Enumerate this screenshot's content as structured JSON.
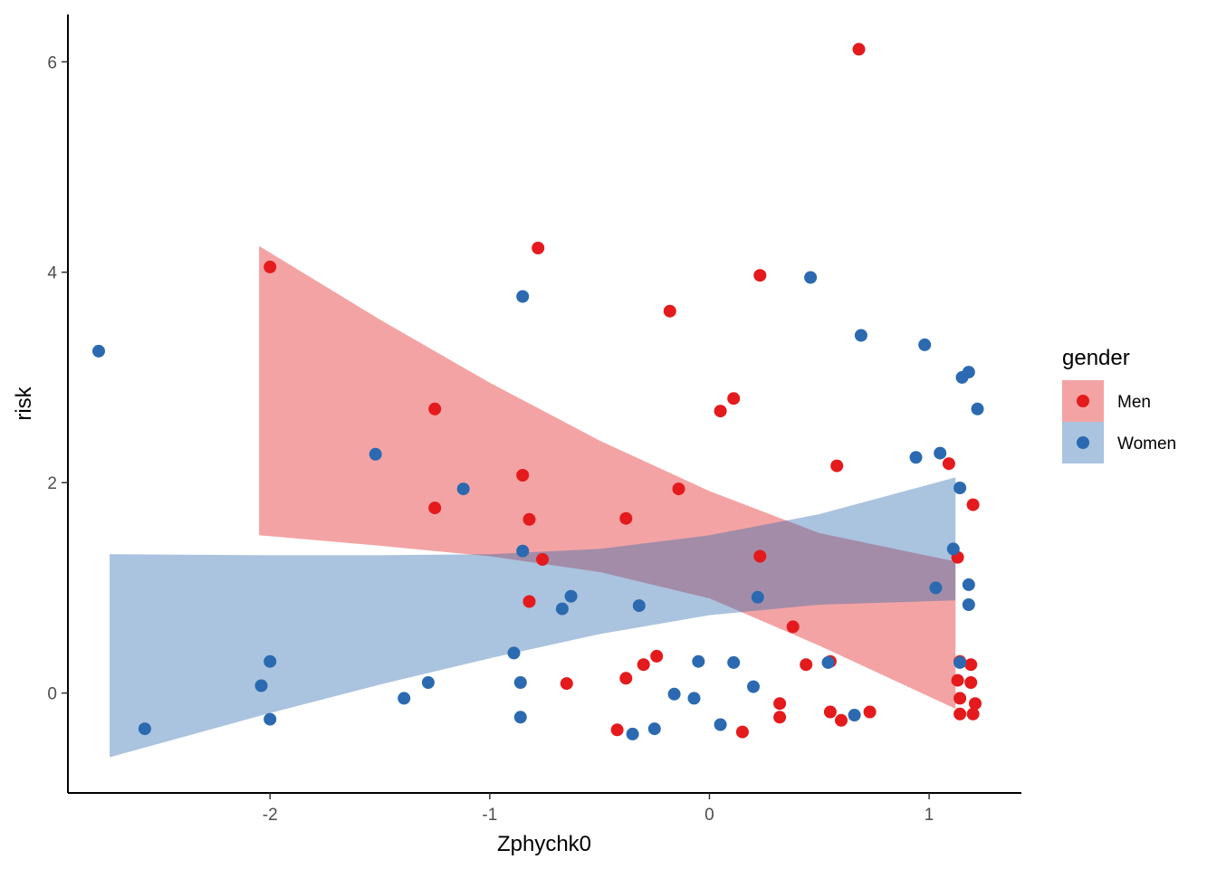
{
  "chart_data": {
    "type": "scatter",
    "xlabel": "Zphychk0",
    "ylabel": "risk",
    "xlim": [
      -2.92,
      1.42
    ],
    "ylim": [
      -0.95,
      6.45
    ],
    "x_ticks": [
      -2,
      -1,
      0,
      1
    ],
    "x_tick_labels": [
      "-2",
      "-1",
      "0",
      "1"
    ],
    "y_ticks": [
      0,
      2,
      4,
      6
    ],
    "y_tick_labels": [
      "0",
      "2",
      "4",
      "6"
    ],
    "grid": false,
    "legend": {
      "title": "gender",
      "placement": "right"
    },
    "series": [
      {
        "name": "Men",
        "color": "#E41A1C",
        "band_color": "#F09AA0",
        "band": {
          "x": [
            -2.05,
            -1.5,
            -1.0,
            -0.5,
            0.0,
            0.5,
            1.12
          ],
          "upper": [
            4.25,
            3.55,
            2.95,
            2.4,
            1.92,
            1.52,
            1.25
          ],
          "lower": [
            1.5,
            1.4,
            1.3,
            1.15,
            0.9,
            0.45,
            -0.15
          ]
        },
        "points": [
          [
            -2.0,
            4.05
          ],
          [
            -0.78,
            4.23
          ],
          [
            0.23,
            3.97
          ],
          [
            -0.18,
            3.63
          ],
          [
            -1.25,
            2.7
          ],
          [
            0.11,
            2.8
          ],
          [
            0.05,
            2.68
          ],
          [
            -0.85,
            2.07
          ],
          [
            -0.14,
            1.94
          ],
          [
            0.58,
            2.16
          ],
          [
            1.09,
            2.18
          ],
          [
            1.2,
            1.79
          ],
          [
            -1.25,
            1.76
          ],
          [
            -0.38,
            1.66
          ],
          [
            -0.82,
            1.65
          ],
          [
            -0.76,
            1.27
          ],
          [
            0.23,
            1.3
          ],
          [
            1.13,
            1.29
          ],
          [
            -0.82,
            0.87
          ],
          [
            0.38,
            0.63
          ],
          [
            -0.24,
            0.35
          ],
          [
            -0.3,
            0.27
          ],
          [
            0.44,
            0.27
          ],
          [
            0.55,
            0.3
          ],
          [
            1.14,
            0.3
          ],
          [
            1.19,
            0.27
          ],
          [
            -0.65,
            0.09
          ],
          [
            -0.38,
            0.14
          ],
          [
            1.13,
            0.12
          ],
          [
            1.19,
            0.1
          ],
          [
            0.32,
            -0.1
          ],
          [
            1.14,
            -0.05
          ],
          [
            1.21,
            -0.1
          ],
          [
            0.32,
            -0.23
          ],
          [
            0.55,
            -0.18
          ],
          [
            0.6,
            -0.26
          ],
          [
            0.73,
            -0.18
          ],
          [
            1.14,
            -0.2
          ],
          [
            1.2,
            -0.2
          ],
          [
            -0.42,
            -0.35
          ],
          [
            0.15,
            -0.37
          ],
          [
            0.68,
            6.12
          ]
        ]
      },
      {
        "name": "Women",
        "color": "#2B6AB0",
        "band_color": "#ADC4DE",
        "band": {
          "x": [
            -2.73,
            -2.0,
            -1.5,
            -1.0,
            -0.5,
            0.0,
            0.5,
            1.12
          ],
          "upper": [
            1.32,
            1.31,
            1.31,
            1.32,
            1.37,
            1.5,
            1.7,
            2.05
          ],
          "lower": [
            -0.61,
            -0.19,
            0.08,
            0.33,
            0.56,
            0.74,
            0.84,
            0.88
          ]
        },
        "points": [
          [
            -2.78,
            3.25
          ],
          [
            -0.85,
            3.77
          ],
          [
            0.46,
            3.95
          ],
          [
            0.69,
            3.4
          ],
          [
            0.98,
            3.31
          ],
          [
            1.18,
            3.05
          ],
          [
            1.15,
            3.0
          ],
          [
            1.22,
            2.7
          ],
          [
            0.94,
            2.24
          ],
          [
            1.05,
            2.28
          ],
          [
            1.14,
            1.95
          ],
          [
            -1.52,
            2.27
          ],
          [
            -1.12,
            1.94
          ],
          [
            1.11,
            1.37
          ],
          [
            1.18,
            1.03
          ],
          [
            1.03,
            1.0
          ],
          [
            1.18,
            0.84
          ],
          [
            -0.85,
            1.35
          ],
          [
            0.22,
            0.91
          ],
          [
            -0.63,
            0.92
          ],
          [
            -0.67,
            0.8
          ],
          [
            -0.32,
            0.83
          ],
          [
            -2.0,
            0.3
          ],
          [
            -2.04,
            0.07
          ],
          [
            -0.89,
            0.38
          ],
          [
            -1.28,
            0.1
          ],
          [
            -0.86,
            0.1
          ],
          [
            -0.05,
            0.3
          ],
          [
            0.11,
            0.29
          ],
          [
            0.54,
            0.29
          ],
          [
            1.14,
            0.29
          ],
          [
            -1.39,
            -0.05
          ],
          [
            -0.16,
            -0.01
          ],
          [
            -0.07,
            -0.05
          ],
          [
            0.2,
            0.06
          ],
          [
            -2.0,
            -0.25
          ],
          [
            -0.86,
            -0.23
          ],
          [
            -2.57,
            -0.34
          ],
          [
            -0.35,
            -0.39
          ],
          [
            -0.25,
            -0.34
          ],
          [
            0.05,
            -0.3
          ],
          [
            0.66,
            -0.21
          ]
        ]
      }
    ]
  }
}
